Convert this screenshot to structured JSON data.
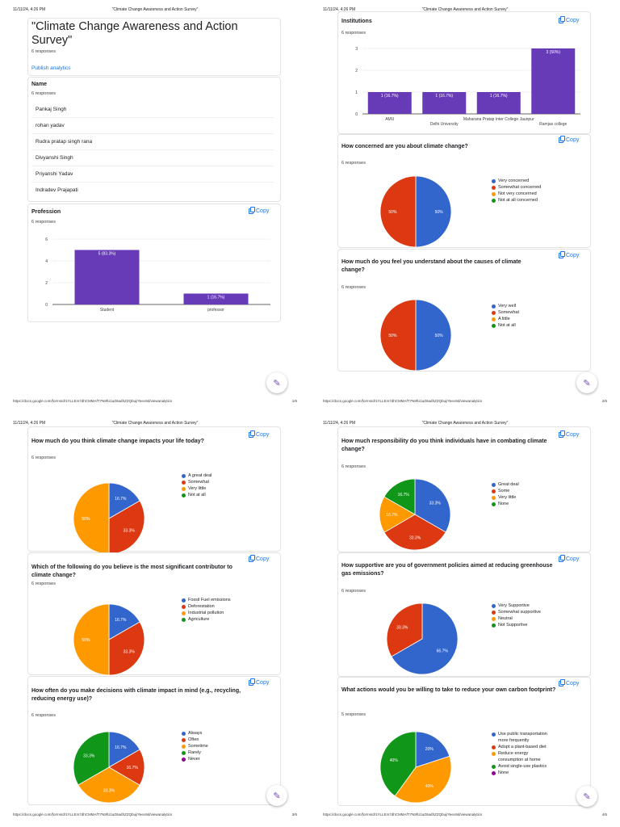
{
  "doc": {
    "header_date": "11/11/24, 4:26 PM",
    "header_title": "\"Climate Change Awareness and Action Survey\"",
    "footer_url": "https://docs.google.com/forms/d/1YLLEm7dhCMMAfT7N9fU1aZ6adhZZQbuj/Yeeo9d/viewanalytics",
    "page1": "1/6",
    "page2": "2/6",
    "page3": "3/6",
    "page4": "4/6"
  },
  "form": {
    "title": "\"Climate Change Awareness and Action Survey\"",
    "responses": "6 responses",
    "publish": "Publish analytics",
    "copy_label": "Copy"
  },
  "name_q": {
    "title": "Name",
    "responses": "6 responses",
    "answers": [
      "Pankaj Singh",
      "rohan yadav",
      "Rudra pratap singh rana",
      "Divyanshi Singh",
      "Priyanshi Yadav",
      "Indradev Prajapati"
    ]
  },
  "colors": {
    "blue": "#3366cc",
    "red": "#dc3912",
    "orange": "#ff9900",
    "green": "#109618",
    "purple": "#990099",
    "bar": "#673ab7"
  },
  "chart_data": [
    {
      "id": "profession",
      "type": "bar",
      "title": "Profession",
      "responses": "6 responses",
      "categories": [
        "Student",
        "professor"
      ],
      "values": [
        5,
        1
      ],
      "labels": [
        "5 (83.3%)",
        "1 (16.7%)"
      ],
      "ylim": [
        0,
        6
      ],
      "yticks": [
        0,
        2,
        4,
        6
      ]
    },
    {
      "id": "institutions",
      "type": "bar",
      "title": "Institutions",
      "responses": "6 responses",
      "categories": [
        "AMU",
        "Delhi University",
        "Maharana Pratap Inter College Jaunpur",
        "Ramjas college"
      ],
      "values": [
        1,
        1,
        1,
        3
      ],
      "labels": [
        "1 (16.7%)",
        "1 (16.7%)",
        "1 (16.7%)",
        "3 (50%)"
      ],
      "ylim": [
        0,
        3
      ],
      "yticks": [
        0,
        1,
        2,
        3
      ]
    },
    {
      "id": "concerned",
      "type": "pie",
      "title": "How concerned are you about climate change?",
      "responses": "6 responses",
      "legend": [
        "Very concerned",
        "Somewhat concerned",
        "Not very concerned",
        "Not at all concerned"
      ],
      "values": [
        50,
        50,
        0,
        0
      ],
      "slice_labels": [
        "50%",
        "50%",
        "",
        ""
      ]
    },
    {
      "id": "understand",
      "type": "pie",
      "title": "How much do you feel you understand about the causes of climate change?",
      "responses": "6 responses",
      "legend": [
        "Very well",
        "Somewhat",
        "A little",
        "Not at all"
      ],
      "values": [
        50,
        50,
        0,
        0
      ],
      "slice_labels": [
        "50%",
        "50%",
        "",
        ""
      ]
    },
    {
      "id": "impacts",
      "type": "pie",
      "title": "How much do you think climate change impacts your life today?",
      "responses": "6 responses",
      "legend": [
        "A great deal",
        "Somewhat",
        "Very little",
        "Not at all"
      ],
      "values": [
        16.7,
        33.3,
        50,
        0
      ],
      "slice_labels": [
        "16.7%",
        "33.3%",
        "50%",
        ""
      ]
    },
    {
      "id": "contributor",
      "type": "pie",
      "title": "Which of the following do you believe is the most significant contributor to climate change?",
      "responses": "6 responses",
      "legend": [
        "Fossil Fuel emissions",
        "Deforestation",
        "Industrial pollution",
        "Agriculture"
      ],
      "values": [
        16.7,
        33.3,
        50,
        0
      ],
      "slice_labels": [
        "16.7%",
        "33.3%",
        "50%",
        ""
      ]
    },
    {
      "id": "decisions",
      "type": "pie",
      "title": "How often do you make decisions with climate impact in mind (e.g., recycling, reducing energy use)?",
      "responses": "6 responses",
      "legend": [
        "Always",
        "Often",
        "Sometime",
        "Rarely",
        "Never"
      ],
      "values": [
        16.7,
        16.7,
        33.3,
        33.3,
        0
      ],
      "slice_labels": [
        "16.7%",
        "16.7%",
        "33.3%",
        "33.3%",
        ""
      ]
    },
    {
      "id": "responsibility",
      "type": "pie",
      "title": "How much responsibility do you think individuals have in combating climate change?",
      "responses": "6 responses",
      "legend": [
        "Great deal",
        "Some",
        "Very little",
        "None"
      ],
      "values": [
        33.3,
        33.3,
        16.7,
        16.7
      ],
      "slice_labels": [
        "33.3%",
        "33.3%",
        "16.7%",
        "16.7%"
      ]
    },
    {
      "id": "supportive",
      "type": "pie",
      "title": "How supportive are you of government policies aimed at reducing greenhouse gas emissions?",
      "responses": "6 responses",
      "legend": [
        "Very Supportive",
        "Somewhat supportive",
        "Neutral",
        "Not Supportive"
      ],
      "values": [
        66.7,
        33.3,
        0,
        0
      ],
      "slice_labels": [
        "66.7%",
        "33.3%",
        "",
        ""
      ]
    },
    {
      "id": "actions",
      "type": "pie",
      "title": "What actions would you be willing to take to reduce your own carbon footprint?",
      "responses": "5 responses",
      "legend": [
        "Use public transportation more frequently",
        "Adopt a plant-based diet",
        "Reduce energy consumption at home",
        "Avoid single-use plastics",
        "None"
      ],
      "values": [
        20,
        0,
        40,
        40,
        0
      ],
      "slice_labels": [
        "20%",
        "",
        "40%",
        "40%",
        ""
      ]
    }
  ]
}
